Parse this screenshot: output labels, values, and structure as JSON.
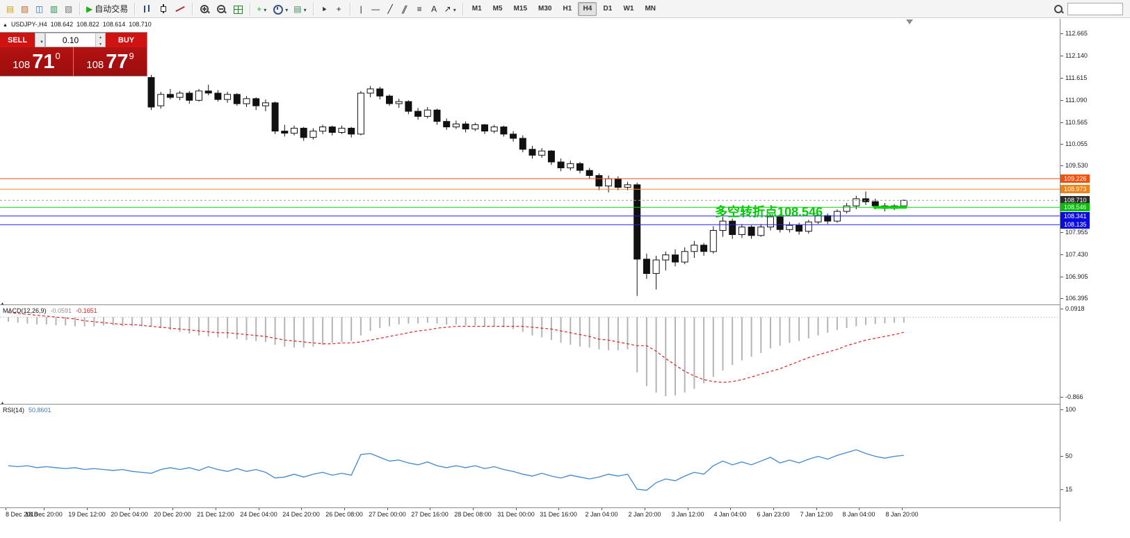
{
  "toolbar": {
    "groups": [
      {
        "items": [
          {
            "name": "new-order-icon",
            "glyph": "▤",
            "color": "#c9a227"
          },
          {
            "name": "metaeditor-icon",
            "glyph": "▨",
            "color": "#d2691e"
          },
          {
            "name": "market-watch-icon",
            "glyph": "◫",
            "color": "#4169aa"
          },
          {
            "name": "navigator-icon",
            "glyph": "▥",
            "color": "#2e8b57"
          },
          {
            "name": "terminal-icon",
            "glyph": "▧",
            "color": "#777777"
          }
        ]
      },
      {
        "items": [
          {
            "name": "auto-trading-button",
            "glyph": "▶",
            "color": "#1fae1f",
            "label": "自动交易"
          }
        ]
      },
      {
        "items": [
          {
            "name": "bar-chart-icon",
            "cls": "ic-bars"
          },
          {
            "name": "candlestick-chart-icon",
            "cls": "ic-candle"
          },
          {
            "name": "line-chart-icon",
            "cls": "ic-line"
          }
        ]
      },
      {
        "items": [
          {
            "name": "zoom-in-icon",
            "cls": "ic-zoom-in"
          },
          {
            "name": "zoom-out-icon",
            "cls": "ic-zoom-out"
          },
          {
            "name": "tile-windows-icon",
            "cls": "ic-grid"
          }
        ]
      },
      {
        "items": [
          {
            "name": "indicators-icon",
            "glyph": "+",
            "color": "#1fae1f",
            "caret": true
          },
          {
            "name": "periods-icon",
            "cls": "ic-clock",
            "caret": true
          },
          {
            "name": "templates-icon",
            "glyph": "▤",
            "color": "#3a8a5f",
            "caret": true
          }
        ]
      },
      {
        "items": [
          {
            "name": "cursor-icon",
            "glyph": "▲",
            "color": "#333333",
            "rotate": true
          },
          {
            "name": "crosshair-icon",
            "glyph": "+",
            "color": "#222222"
          }
        ]
      },
      {
        "items": [
          {
            "name": "vertical-line-icon",
            "glyph": "|",
            "color": "#222222"
          },
          {
            "name": "horizontal-line-icon",
            "glyph": "—",
            "color": "#222222"
          },
          {
            "name": "trendline-icon",
            "glyph": "╱",
            "color": "#222222"
          },
          {
            "name": "channel-icon",
            "glyph": "∥",
            "color": "#222222",
            "skew": true
          },
          {
            "name": "fibonacci-icon",
            "glyph": "≡",
            "color": "#222222"
          },
          {
            "name": "text-icon",
            "glyph": "A",
            "color": "#222222"
          },
          {
            "name": "arrows-icon",
            "glyph": "↗",
            "color": "#222222",
            "caret": true
          }
        ]
      }
    ],
    "timeframes": {
      "labels": [
        "M1",
        "M5",
        "M15",
        "M30",
        "H1",
        "H4",
        "D1",
        "W1",
        "MN"
      ],
      "active": "H4"
    },
    "search_value": ""
  },
  "chart_header": {
    "symbol_text": "USDJPY-,H4",
    "open": "108.642",
    "high": "108.822",
    "low": "108.614",
    "close": "108.710"
  },
  "trade_panel": {
    "sell_label": "SELL",
    "buy_label": "BUY",
    "volume": "0.10",
    "sell_price": {
      "big": "108",
      "mid": "71",
      "sup": "0"
    },
    "buy_price": {
      "big": "108",
      "mid": "77",
      "sup": "9"
    }
  },
  "chart_data": {
    "type": "candlestick",
    "symbol": "USDJPY-",
    "timeframe": "H4",
    "annotation": {
      "text": "多空转折点108.546",
      "color": "#00cc00"
    },
    "price_axis_ticks": [
      "112.665",
      "112.140",
      "111.615",
      "111.090",
      "110.565",
      "110.055",
      "109.530",
      "107.955",
      "107.430",
      "106.905",
      "106.395"
    ],
    "levels": [
      {
        "price": 109.226,
        "label": "109.226",
        "line_color": "#ff4a14",
        "label_bg": "#f5500a",
        "style": "solid"
      },
      {
        "price": 108.973,
        "label": "108.973",
        "line_color": "#ff8c1e",
        "label_bg": "#f08214",
        "style": "solid"
      },
      {
        "price": 108.71,
        "label": "108.710",
        "line_color": "#9e9e9e",
        "label_bg": "#2e2e2e",
        "style": "dashed",
        "is_current": true
      },
      {
        "price": 108.546,
        "label": "108.546",
        "line_color": "#00d800",
        "label_bg": "#00bf00",
        "style": "solid",
        "highlight_segment": true
      },
      {
        "price": 108.341,
        "label": "108.341",
        "line_color": "#2020ff",
        "label_bg": "#0a0ae0",
        "style": "solid"
      },
      {
        "price": 108.135,
        "label": "108.135",
        "line_color": "#2020ff",
        "label_bg": "#0a0ae0",
        "style": "solid"
      }
    ],
    "time_labels": [
      "8 Dec 2018",
      "18 Dec 20:00",
      "19 Dec 12:00",
      "20 Dec 04:00",
      "20 Dec 20:00",
      "21 Dec 12:00",
      "24 Dec 04:00",
      "24 Dec 20:00",
      "26 Dec 08:00",
      "27 Dec 00:00",
      "27 Dec 16:00",
      "28 Dec 08:00",
      "31 Dec 00:00",
      "31 Dec 16:00",
      "2 Jan 04:00",
      "2 Jan 20:00",
      "3 Jan 12:00",
      "4 Jan 04:00",
      "6 Jan 23:00",
      "7 Jan 12:00",
      "8 Jan 04:00",
      "8 Jan 20:00"
    ],
    "candles": [
      [
        111.62,
        111.68,
        110.85,
        110.92
      ],
      [
        110.95,
        111.28,
        110.88,
        111.22
      ],
      [
        111.22,
        111.35,
        111.1,
        111.15
      ],
      [
        111.15,
        111.3,
        111.08,
        111.25
      ],
      [
        111.25,
        111.3,
        111.0,
        111.08
      ],
      [
        111.08,
        111.35,
        111.05,
        111.3
      ],
      [
        111.3,
        111.45,
        111.2,
        111.25
      ],
      [
        111.25,
        111.32,
        111.05,
        111.1
      ],
      [
        111.1,
        111.28,
        111.02,
        111.22
      ],
      [
        111.22,
        111.25,
        110.95,
        111.0
      ],
      [
        111.0,
        111.18,
        110.92,
        111.12
      ],
      [
        111.12,
        111.15,
        110.85,
        110.95
      ],
      [
        110.95,
        111.1,
        110.82,
        111.02
      ],
      [
        111.02,
        111.05,
        110.28,
        110.35
      ],
      [
        110.35,
        110.5,
        110.22,
        110.3
      ],
      [
        110.3,
        110.48,
        110.25,
        110.42
      ],
      [
        110.42,
        110.45,
        110.12,
        110.2
      ],
      [
        110.2,
        110.42,
        110.15,
        110.35
      ],
      [
        110.35,
        110.5,
        110.28,
        110.45
      ],
      [
        110.45,
        110.48,
        110.25,
        110.32
      ],
      [
        110.32,
        110.48,
        110.28,
        110.42
      ],
      [
        110.42,
        110.45,
        110.2,
        110.28
      ],
      [
        110.28,
        111.3,
        110.25,
        111.25
      ],
      [
        111.25,
        111.42,
        111.15,
        111.35
      ],
      [
        111.35,
        111.4,
        111.1,
        111.18
      ],
      [
        111.18,
        111.22,
        110.95,
        111.0
      ],
      [
        111.0,
        111.12,
        110.9,
        111.05
      ],
      [
        111.05,
        111.08,
        110.75,
        110.82
      ],
      [
        110.82,
        110.9,
        110.62,
        110.7
      ],
      [
        110.7,
        110.92,
        110.65,
        110.85
      ],
      [
        110.85,
        110.88,
        110.5,
        110.58
      ],
      [
        110.58,
        110.65,
        110.38,
        110.45
      ],
      [
        110.45,
        110.6,
        110.4,
        110.52
      ],
      [
        110.52,
        110.58,
        110.32,
        110.4
      ],
      [
        110.4,
        110.55,
        110.35,
        110.5
      ],
      [
        110.5,
        110.52,
        110.28,
        110.35
      ],
      [
        110.35,
        110.5,
        110.3,
        110.45
      ],
      [
        110.45,
        110.48,
        110.22,
        110.28
      ],
      [
        110.28,
        110.35,
        110.1,
        110.18
      ],
      [
        110.18,
        110.25,
        109.85,
        109.92
      ],
      [
        109.92,
        110.0,
        109.7,
        109.78
      ],
      [
        109.78,
        109.95,
        109.72,
        109.88
      ],
      [
        109.88,
        109.9,
        109.55,
        109.62
      ],
      [
        109.62,
        109.7,
        109.4,
        109.48
      ],
      [
        109.48,
        109.65,
        109.42,
        109.58
      ],
      [
        109.58,
        109.62,
        109.35,
        109.42
      ],
      [
        109.42,
        109.48,
        109.22,
        109.3
      ],
      [
        109.3,
        109.35,
        108.95,
        109.05
      ],
      [
        109.05,
        109.3,
        108.9,
        109.22
      ],
      [
        109.22,
        109.28,
        108.95,
        109.02
      ],
      [
        109.02,
        109.15,
        108.95,
        109.08
      ],
      [
        109.08,
        109.13,
        106.45,
        107.32
      ],
      [
        107.32,
        107.45,
        106.85,
        106.98
      ],
      [
        106.98,
        107.4,
        106.6,
        107.3
      ],
      [
        107.3,
        107.5,
        107.05,
        107.42
      ],
      [
        107.42,
        107.55,
        107.15,
        107.25
      ],
      [
        107.25,
        107.6,
        107.2,
        107.5
      ],
      [
        107.5,
        107.75,
        107.35,
        107.65
      ],
      [
        107.65,
        107.7,
        107.4,
        107.5
      ],
      [
        107.5,
        108.1,
        107.45,
        108.0
      ],
      [
        108.0,
        108.32,
        107.85,
        108.22
      ],
      [
        108.22,
        108.28,
        107.8,
        107.9
      ],
      [
        107.9,
        108.15,
        107.82,
        108.08
      ],
      [
        108.08,
        108.12,
        107.8,
        107.88
      ],
      [
        107.88,
        108.15,
        107.85,
        108.08
      ],
      [
        108.08,
        108.38,
        108.0,
        108.32
      ],
      [
        108.32,
        108.38,
        107.95,
        108.02
      ],
      [
        108.02,
        108.2,
        107.95,
        108.12
      ],
      [
        108.12,
        108.18,
        107.9,
        107.98
      ],
      [
        107.98,
        108.25,
        107.92,
        108.2
      ],
      [
        108.2,
        108.4,
        108.15,
        108.35
      ],
      [
        108.35,
        108.4,
        108.15,
        108.22
      ],
      [
        108.22,
        108.5,
        108.18,
        108.45
      ],
      [
        108.45,
        108.65,
        108.4,
        108.58
      ],
      [
        108.58,
        108.82,
        108.5,
        108.75
      ],
      [
        108.75,
        108.92,
        108.6,
        108.68
      ],
      [
        108.68,
        108.75,
        108.5,
        108.58
      ],
      [
        108.58,
        108.65,
        108.45,
        108.52
      ],
      [
        108.52,
        108.62,
        108.48,
        108.58
      ],
      [
        108.58,
        108.73,
        108.52,
        108.71
      ]
    ],
    "indicators": [
      {
        "type": "macd",
        "name": "MACD(12,26,9)",
        "values": [
          "-0.0591",
          "-0.1651"
        ],
        "axis_labels": [
          "0.0918",
          "-0.866"
        ],
        "histogram": [
          -0.05,
          -0.06,
          -0.07,
          -0.08,
          -0.08,
          -0.09,
          -0.09,
          -0.1,
          -0.1,
          -0.1,
          -0.09,
          -0.09,
          -0.1,
          -0.1,
          -0.1,
          -0.1,
          -0.12,
          -0.14,
          -0.16,
          -0.18,
          -0.2,
          -0.21,
          -0.22,
          -0.23,
          -0.24,
          -0.25,
          -0.26,
          -0.27,
          -0.3,
          -0.32,
          -0.33,
          -0.33,
          -0.32,
          -0.3,
          -0.28,
          -0.27,
          -0.26,
          -0.2,
          -0.15,
          -0.12,
          -0.1,
          -0.08,
          -0.07,
          -0.07,
          -0.06,
          -0.07,
          -0.08,
          -0.08,
          -0.09,
          -0.09,
          -0.1,
          -0.1,
          -0.11,
          -0.13,
          -0.16,
          -0.2,
          -0.22,
          -0.25,
          -0.28,
          -0.3,
          -0.32,
          -0.33,
          -0.35,
          -0.36,
          -0.36,
          -0.35,
          -0.6,
          -0.75,
          -0.82,
          -0.86,
          -0.85,
          -0.82,
          -0.78,
          -0.72,
          -0.65,
          -0.58,
          -0.52,
          -0.47,
          -0.43,
          -0.39,
          -0.34,
          -0.31,
          -0.28,
          -0.26,
          -0.23,
          -0.2,
          -0.17,
          -0.14,
          -0.12,
          -0.1,
          -0.085,
          -0.075,
          -0.068,
          -0.062,
          -0.059
        ],
        "signal": [
          0.05,
          0.04,
          0.03,
          0.02,
          0.01,
          0.0,
          -0.01,
          -0.02,
          -0.04,
          -0.05,
          -0.06,
          -0.07,
          -0.08,
          -0.08,
          -0.09,
          -0.1,
          -0.11,
          -0.12,
          -0.13,
          -0.14,
          -0.15,
          -0.16,
          -0.17,
          -0.17,
          -0.18,
          -0.19,
          -0.2,
          -0.21,
          -0.23,
          -0.25,
          -0.26,
          -0.27,
          -0.28,
          -0.29,
          -0.29,
          -0.28,
          -0.28,
          -0.27,
          -0.25,
          -0.23,
          -0.21,
          -0.19,
          -0.17,
          -0.15,
          -0.14,
          -0.12,
          -0.11,
          -0.1,
          -0.1,
          -0.1,
          -0.1,
          -0.1,
          -0.1,
          -0.1,
          -0.1,
          -0.11,
          -0.12,
          -0.13,
          -0.15,
          -0.17,
          -0.19,
          -0.21,
          -0.24,
          -0.25,
          -0.27,
          -0.29,
          -0.31,
          -0.31,
          -0.37,
          -0.45,
          -0.52,
          -0.59,
          -0.64,
          -0.68,
          -0.7,
          -0.71,
          -0.7,
          -0.68,
          -0.65,
          -0.62,
          -0.59,
          -0.56,
          -0.52,
          -0.48,
          -0.44,
          -0.41,
          -0.38,
          -0.35,
          -0.31,
          -0.28,
          -0.25,
          -0.23,
          -0.21,
          -0.19,
          -0.165
        ]
      },
      {
        "type": "rsi",
        "name": "RSI(14)",
        "value_label": "50.8601",
        "axis_labels": [
          "100",
          "50",
          "15"
        ],
        "values": [
          40,
          39,
          40,
          38,
          39,
          38,
          37,
          38,
          36,
          37,
          36,
          35,
          36,
          34,
          33,
          32,
          36,
          38,
          36,
          38,
          35,
          39,
          36,
          34,
          37,
          34,
          36,
          33,
          27,
          28,
          31,
          28,
          31,
          33,
          30,
          32,
          30,
          52,
          53,
          49,
          45,
          46,
          43,
          41,
          44,
          40,
          38,
          40,
          38,
          40,
          37,
          39,
          36,
          34,
          31,
          29,
          32,
          29,
          27,
          30,
          28,
          26,
          28,
          31,
          29,
          31,
          15,
          14,
          22,
          26,
          24,
          29,
          33,
          31,
          40,
          45,
          41,
          44,
          41,
          45,
          49,
          43,
          46,
          43,
          47,
          50,
          47,
          51,
          54,
          57,
          53,
          50,
          48,
          50,
          51
        ]
      }
    ]
  }
}
